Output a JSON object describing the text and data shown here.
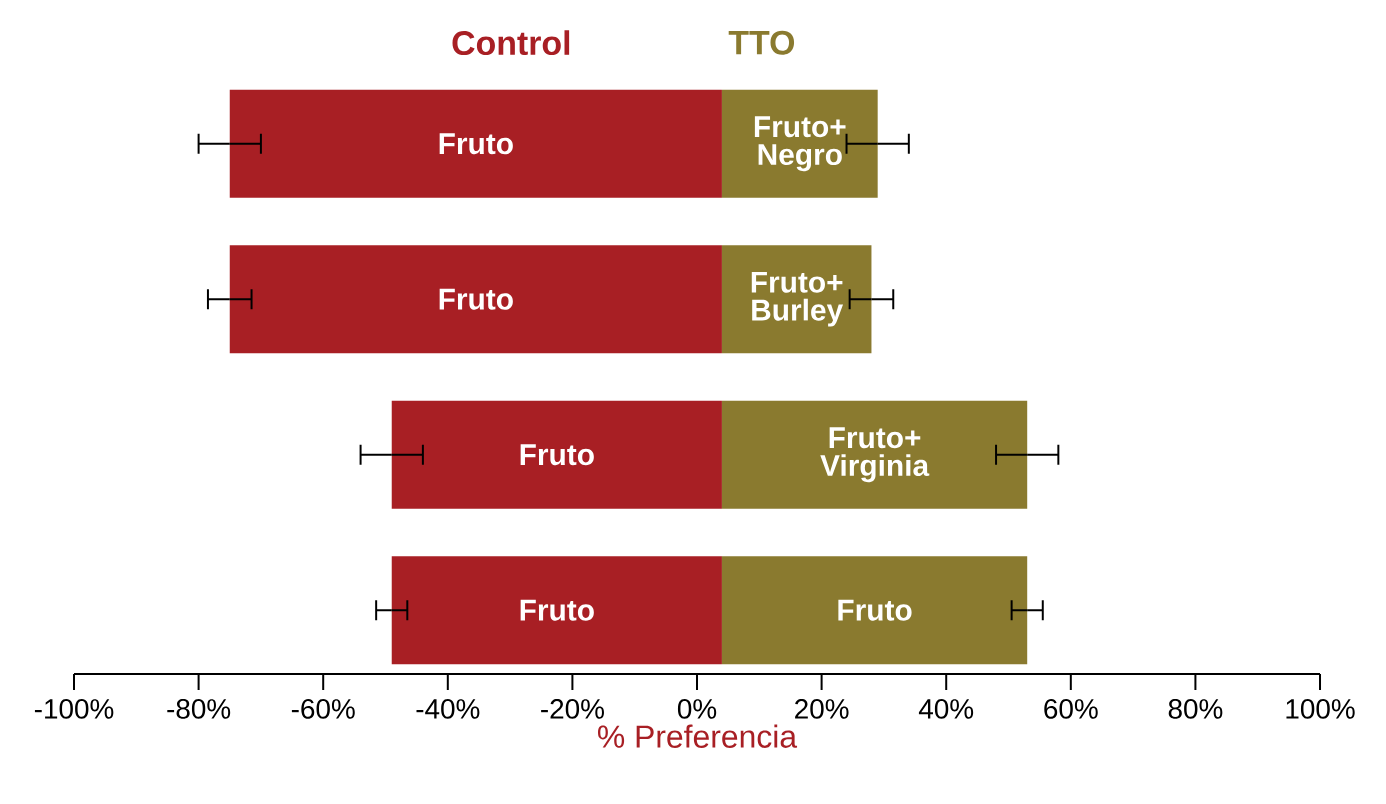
{
  "chart_data": {
    "type": "bar",
    "orientation": "horizontal",
    "stacked": true,
    "xlabel": "% Preferencia",
    "categories": [
      null,
      null,
      null,
      null
    ],
    "series": [
      {
        "name": "Control",
        "color": "#a81f24",
        "base": [
          4,
          4,
          4,
          4
        ],
        "values": [
          -79,
          -79,
          -53,
          -53
        ],
        "errors": [
          5,
          3.5,
          5,
          2.5
        ]
      },
      {
        "name": "TTO",
        "color": "#8a7a2f",
        "base": [
          4,
          4,
          4,
          4
        ],
        "values": [
          25,
          24,
          49,
          49
        ],
        "errors": [
          5,
          3.5,
          5,
          2.5
        ]
      }
    ],
    "xlim": [
      -100,
      100
    ],
    "xticks": [
      {
        "value": -100,
        "label": "-100%"
      },
      {
        "value": -80,
        "label": "-80%"
      },
      {
        "value": -60,
        "label": "-60%"
      },
      {
        "value": -40,
        "label": "-40%"
      },
      {
        "value": -20,
        "label": "-20%"
      },
      {
        "value": 0,
        "label": "0%"
      },
      {
        "value": 20,
        "label": "20%"
      },
      {
        "value": 40,
        "label": "40%"
      },
      {
        "value": 60,
        "label": "60%"
      },
      {
        "value": 80,
        "label": "80%"
      },
      {
        "value": 100,
        "label": "100%"
      }
    ],
    "annotations": [
      "Fruto",
      "Fruto+ Negro",
      "Fruto",
      "Fruto+ Burley",
      "Fruto",
      "Fruto+ Virginia",
      "Fruto",
      "Fruto"
    ]
  }
}
